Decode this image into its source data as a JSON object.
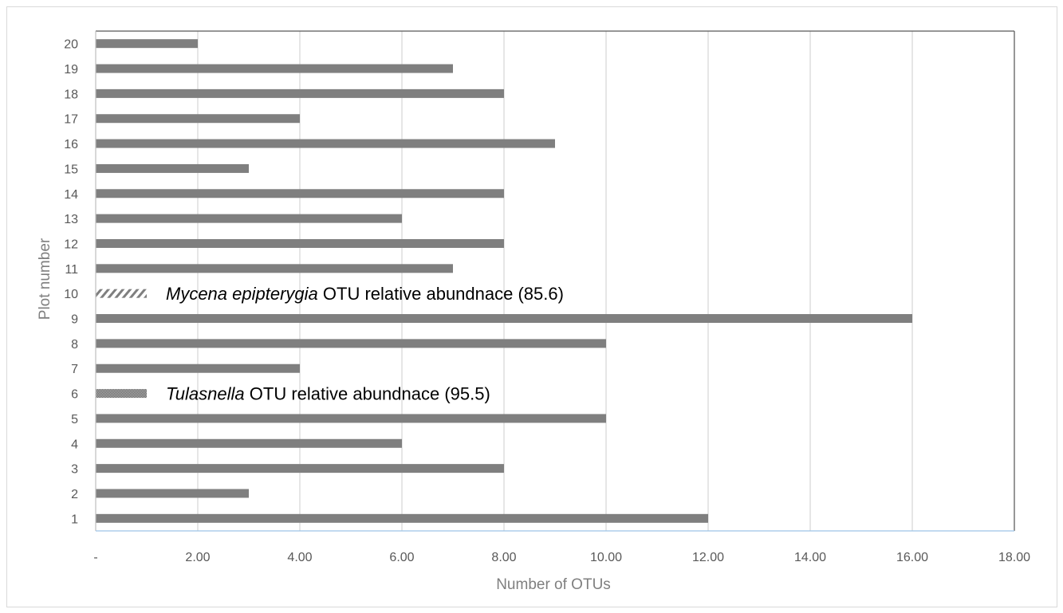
{
  "chart_data": {
    "type": "bar",
    "orientation": "horizontal",
    "xlabel": "Number of OTUs",
    "ylabel": "Plot number",
    "xlim": [
      0,
      18
    ],
    "x_ticks": [
      "-",
      "2.00",
      "4.00",
      "6.00",
      "8.00",
      "10.00",
      "12.00",
      "14.00",
      "16.00",
      "18.00"
    ],
    "x_tick_values": [
      0,
      2,
      4,
      6,
      8,
      10,
      12,
      14,
      16,
      18
    ],
    "categories": [
      "1",
      "2",
      "3",
      "4",
      "5",
      "6",
      "7",
      "8",
      "9",
      "10",
      "11",
      "12",
      "13",
      "14",
      "15",
      "16",
      "17",
      "18",
      "19",
      "20"
    ],
    "values": [
      12,
      3,
      8,
      6,
      10,
      1,
      4,
      10,
      16,
      1,
      7,
      8,
      6,
      8,
      3,
      9,
      4,
      8,
      7,
      2
    ],
    "bar_patterns": [
      "solid",
      "solid",
      "solid",
      "solid",
      "solid",
      "dotted",
      "solid",
      "solid",
      "solid",
      "hatched",
      "solid",
      "solid",
      "solid",
      "solid",
      "solid",
      "solid",
      "solid",
      "solid",
      "solid",
      "solid"
    ],
    "grid": "vertical",
    "colors": {
      "bar": "#7f7f7f",
      "grid": "#d9d9d9",
      "axis": "#bfbfbf",
      "frame": "#595959"
    },
    "annotations": [
      {
        "category": "10",
        "italic": "Mycena epipterygia",
        "text": " OTU relative abundnace (85.6)"
      },
      {
        "category": "6",
        "italic": "Tulasnella",
        "text": " OTU relative abundnace (95.5)"
      }
    ]
  }
}
